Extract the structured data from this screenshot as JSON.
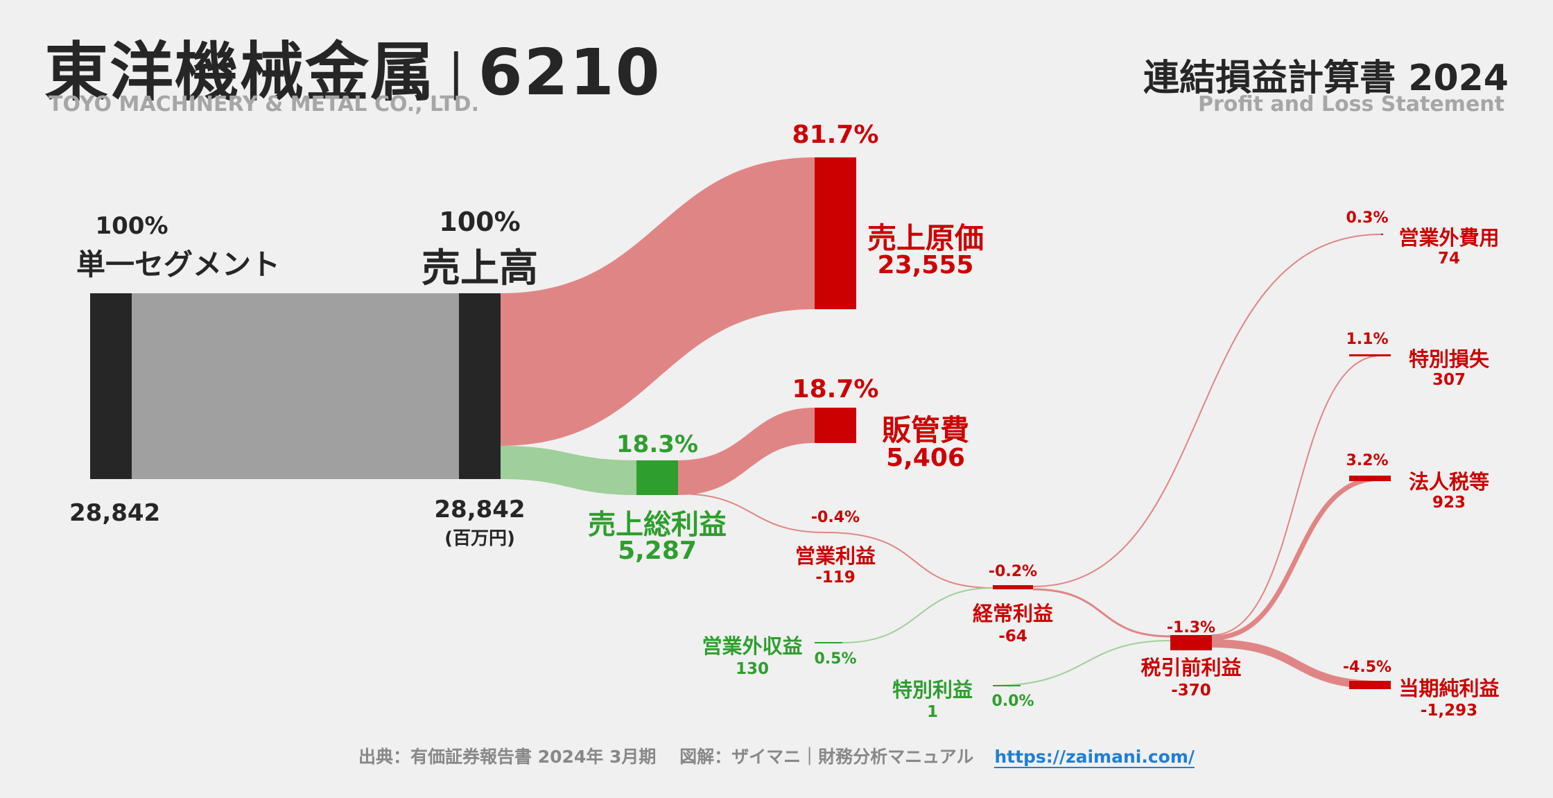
{
  "header": {
    "company_jp": "東洋機械金属",
    "ticker": "6210",
    "company_en": "TOYO MACHINERY & METAL CO., LTD.",
    "statement_jp": "連結損益計算書 2024",
    "statement_en": "Profit and Loss Statement"
  },
  "nodes": {
    "segment": {
      "pct": "100%",
      "label": "単一セグメント",
      "value": "28,842"
    },
    "revenue": {
      "pct": "100%",
      "label": "売上高",
      "value": "28,842",
      "unit": "(百万円)"
    },
    "cogs": {
      "pct": "81.7%",
      "label": "売上原価",
      "value": "23,555"
    },
    "sga": {
      "pct": "18.7%",
      "label": "販管費",
      "value": "5,406"
    },
    "gross_profit": {
      "pct": "18.3%",
      "label": "売上総利益",
      "value": "5,287"
    },
    "operating_profit": {
      "pct": "-0.4%",
      "label": "営業利益",
      "value": "-119"
    },
    "non_op_income": {
      "pct": "0.5%",
      "label": "営業外収益",
      "value": "130"
    },
    "non_op_expense": {
      "pct": "0.3%",
      "label": "営業外費用",
      "value": "74"
    },
    "ordinary_profit": {
      "pct": "-0.2%",
      "label": "経常利益",
      "value": "-64"
    },
    "extraordinary_gain": {
      "pct": "0.0%",
      "label": "特別利益",
      "value": "1"
    },
    "extraordinary_loss": {
      "pct": "1.1%",
      "label": "特別損失",
      "value": "307"
    },
    "pretax_profit": {
      "pct": "-1.3%",
      "label": "税引前利益",
      "value": "-370"
    },
    "income_tax": {
      "pct": "3.2%",
      "label": "法人税等",
      "value": "923"
    },
    "net_profit": {
      "pct": "-4.5%",
      "label": "当期純利益",
      "value": "-1,293"
    }
  },
  "footer": {
    "source": "出典：有価証券報告書 2024年 3月期　 図解：ザイマニ｜財務分析マニュアル",
    "url": "https://zaimani.com/"
  },
  "colors": {
    "dark": "#262626",
    "gray_flow": "#a0a0a0",
    "red": "#cc0000",
    "red_flow": "#e08585",
    "green": "#2e9e2e",
    "green_flow": "#9fcf9a"
  }
}
